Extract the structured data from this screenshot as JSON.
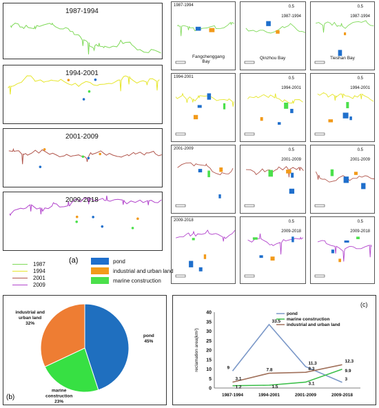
{
  "large_panels": [
    {
      "period": "1987-1994",
      "color": "#7ed957"
    },
    {
      "period": "1994-2001",
      "color": "#e6e62a"
    },
    {
      "period": "2001-2009",
      "color": "#b0544a"
    },
    {
      "period": "2009-2018",
      "color": "#b244cc"
    }
  ],
  "small_columns": [
    "Fangchenggang Bay",
    "Qinzhou Bay",
    "Tieshan Bay"
  ],
  "small_rows": [
    "1987-1994",
    "1994-2001",
    "2001-2009",
    "2009-2018"
  ],
  "scale_label": "0.5",
  "panel_a_label": "(a)",
  "panel_b_label": "(b)",
  "panel_c_label": "(c)",
  "line_legend": [
    {
      "label": "1987",
      "color": "#7ed957"
    },
    {
      "label": "1994",
      "color": "#e6e62a"
    },
    {
      "label": "2001",
      "color": "#b0544a"
    },
    {
      "label": "2009",
      "color": "#b244cc"
    }
  ],
  "type_legend": [
    {
      "label": "pond",
      "color": "#1f6fcc"
    },
    {
      "label": "industrial and urban land",
      "color": "#f29a1a"
    },
    {
      "label": "marine construction",
      "color": "#4be04b"
    }
  ],
  "chart_data": [
    {
      "type": "pie",
      "categories": [
        "pond",
        "marine construction",
        "industrial and urban land"
      ],
      "labels": [
        "pond\n45%",
        "marine\nconstruction\n23%",
        "industrial and\nurban land\n32%"
      ],
      "values": [
        45,
        23,
        32
      ],
      "colors": [
        "#1f6fbf",
        "#37e043",
        "#ee7d33"
      ]
    },
    {
      "type": "line",
      "categories": [
        "1987-1994",
        "1994-2001",
        "2001-2009",
        "2009-2018"
      ],
      "series": [
        {
          "name": "pond",
          "values": [
            9,
            33.5,
            11.3,
            3
          ],
          "color": "#7b98c8",
          "labels": [
            "9",
            "33.5",
            "11.3",
            "3"
          ]
        },
        {
          "name": "marine construction",
          "values": [
            1.2,
            1.5,
            3.1,
            9.9
          ],
          "color": "#3cbf4a",
          "labels": [
            "1.2",
            "1.5",
            "3.1",
            "9.9"
          ]
        },
        {
          "name": "industrial and urban land",
          "values": [
            3.1,
            7.8,
            8.3,
            12.3
          ],
          "color": "#a0705a",
          "labels": [
            "3.1",
            "7.8",
            "8.3",
            "12.3"
          ]
        }
      ],
      "ylabel": "reclamation area(km²)",
      "ylim": [
        0,
        40
      ],
      "yticks": [
        0,
        5,
        10,
        15,
        20,
        25,
        30,
        35,
        40
      ]
    }
  ]
}
